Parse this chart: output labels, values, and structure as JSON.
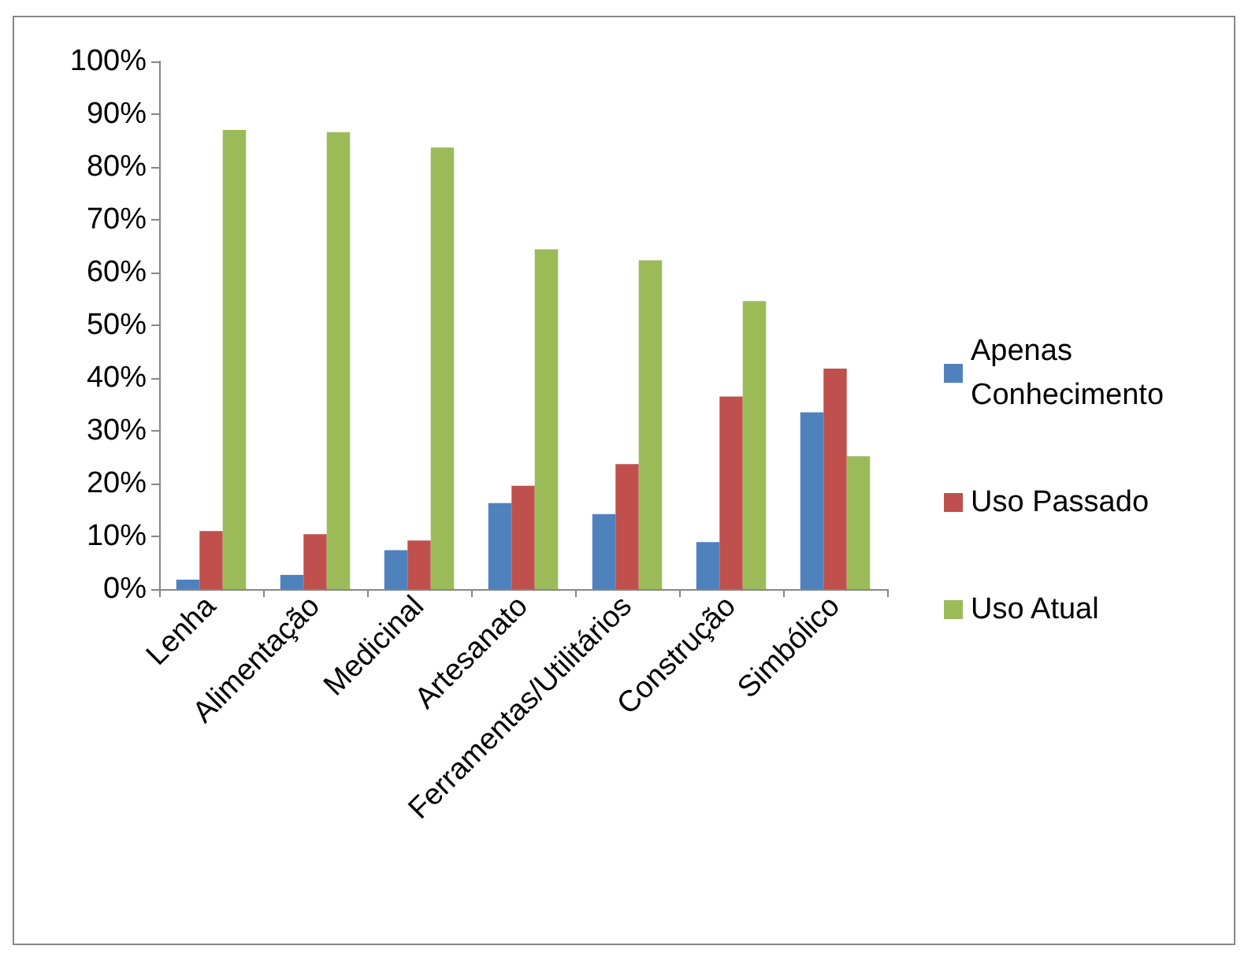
{
  "chart_data": {
    "type": "bar",
    "categories": [
      "Lenha",
      "Alimentação",
      "Medicinal",
      "Artesanato",
      "Ferramentas/Utilitários",
      "Construção",
      "Simbólico"
    ],
    "series": [
      {
        "name": "Apenas Conhecimento",
        "color": "#4f81bd",
        "values": [
          1.8,
          2.7,
          7.4,
          16.3,
          14.2,
          8.9,
          33.5
        ]
      },
      {
        "name": "Uso Passado",
        "color": "#c0504d",
        "values": [
          11,
          10.4,
          9.2,
          19.6,
          23.7,
          36.5,
          41.8
        ]
      },
      {
        "name": "Uso Atual",
        "color": "#9bbb59",
        "values": [
          87,
          86.6,
          83.7,
          64.4,
          62.3,
          54.6,
          25.2
        ]
      }
    ],
    "ylim": [
      0,
      100
    ],
    "yticks": [
      {
        "value": 0,
        "label": "0%"
      },
      {
        "value": 10,
        "label": "10%"
      },
      {
        "value": 20,
        "label": "20%"
      },
      {
        "value": 30,
        "label": "30%"
      },
      {
        "value": 40,
        "label": "40%"
      },
      {
        "value": 50,
        "label": "50%"
      },
      {
        "value": 60,
        "label": "60%"
      },
      {
        "value": 70,
        "label": "70%"
      },
      {
        "value": 80,
        "label": "80%"
      },
      {
        "value": 90,
        "label": "90%"
      },
      {
        "value": 100,
        "label": "100%"
      }
    ],
    "grid": false,
    "legend": "right"
  }
}
